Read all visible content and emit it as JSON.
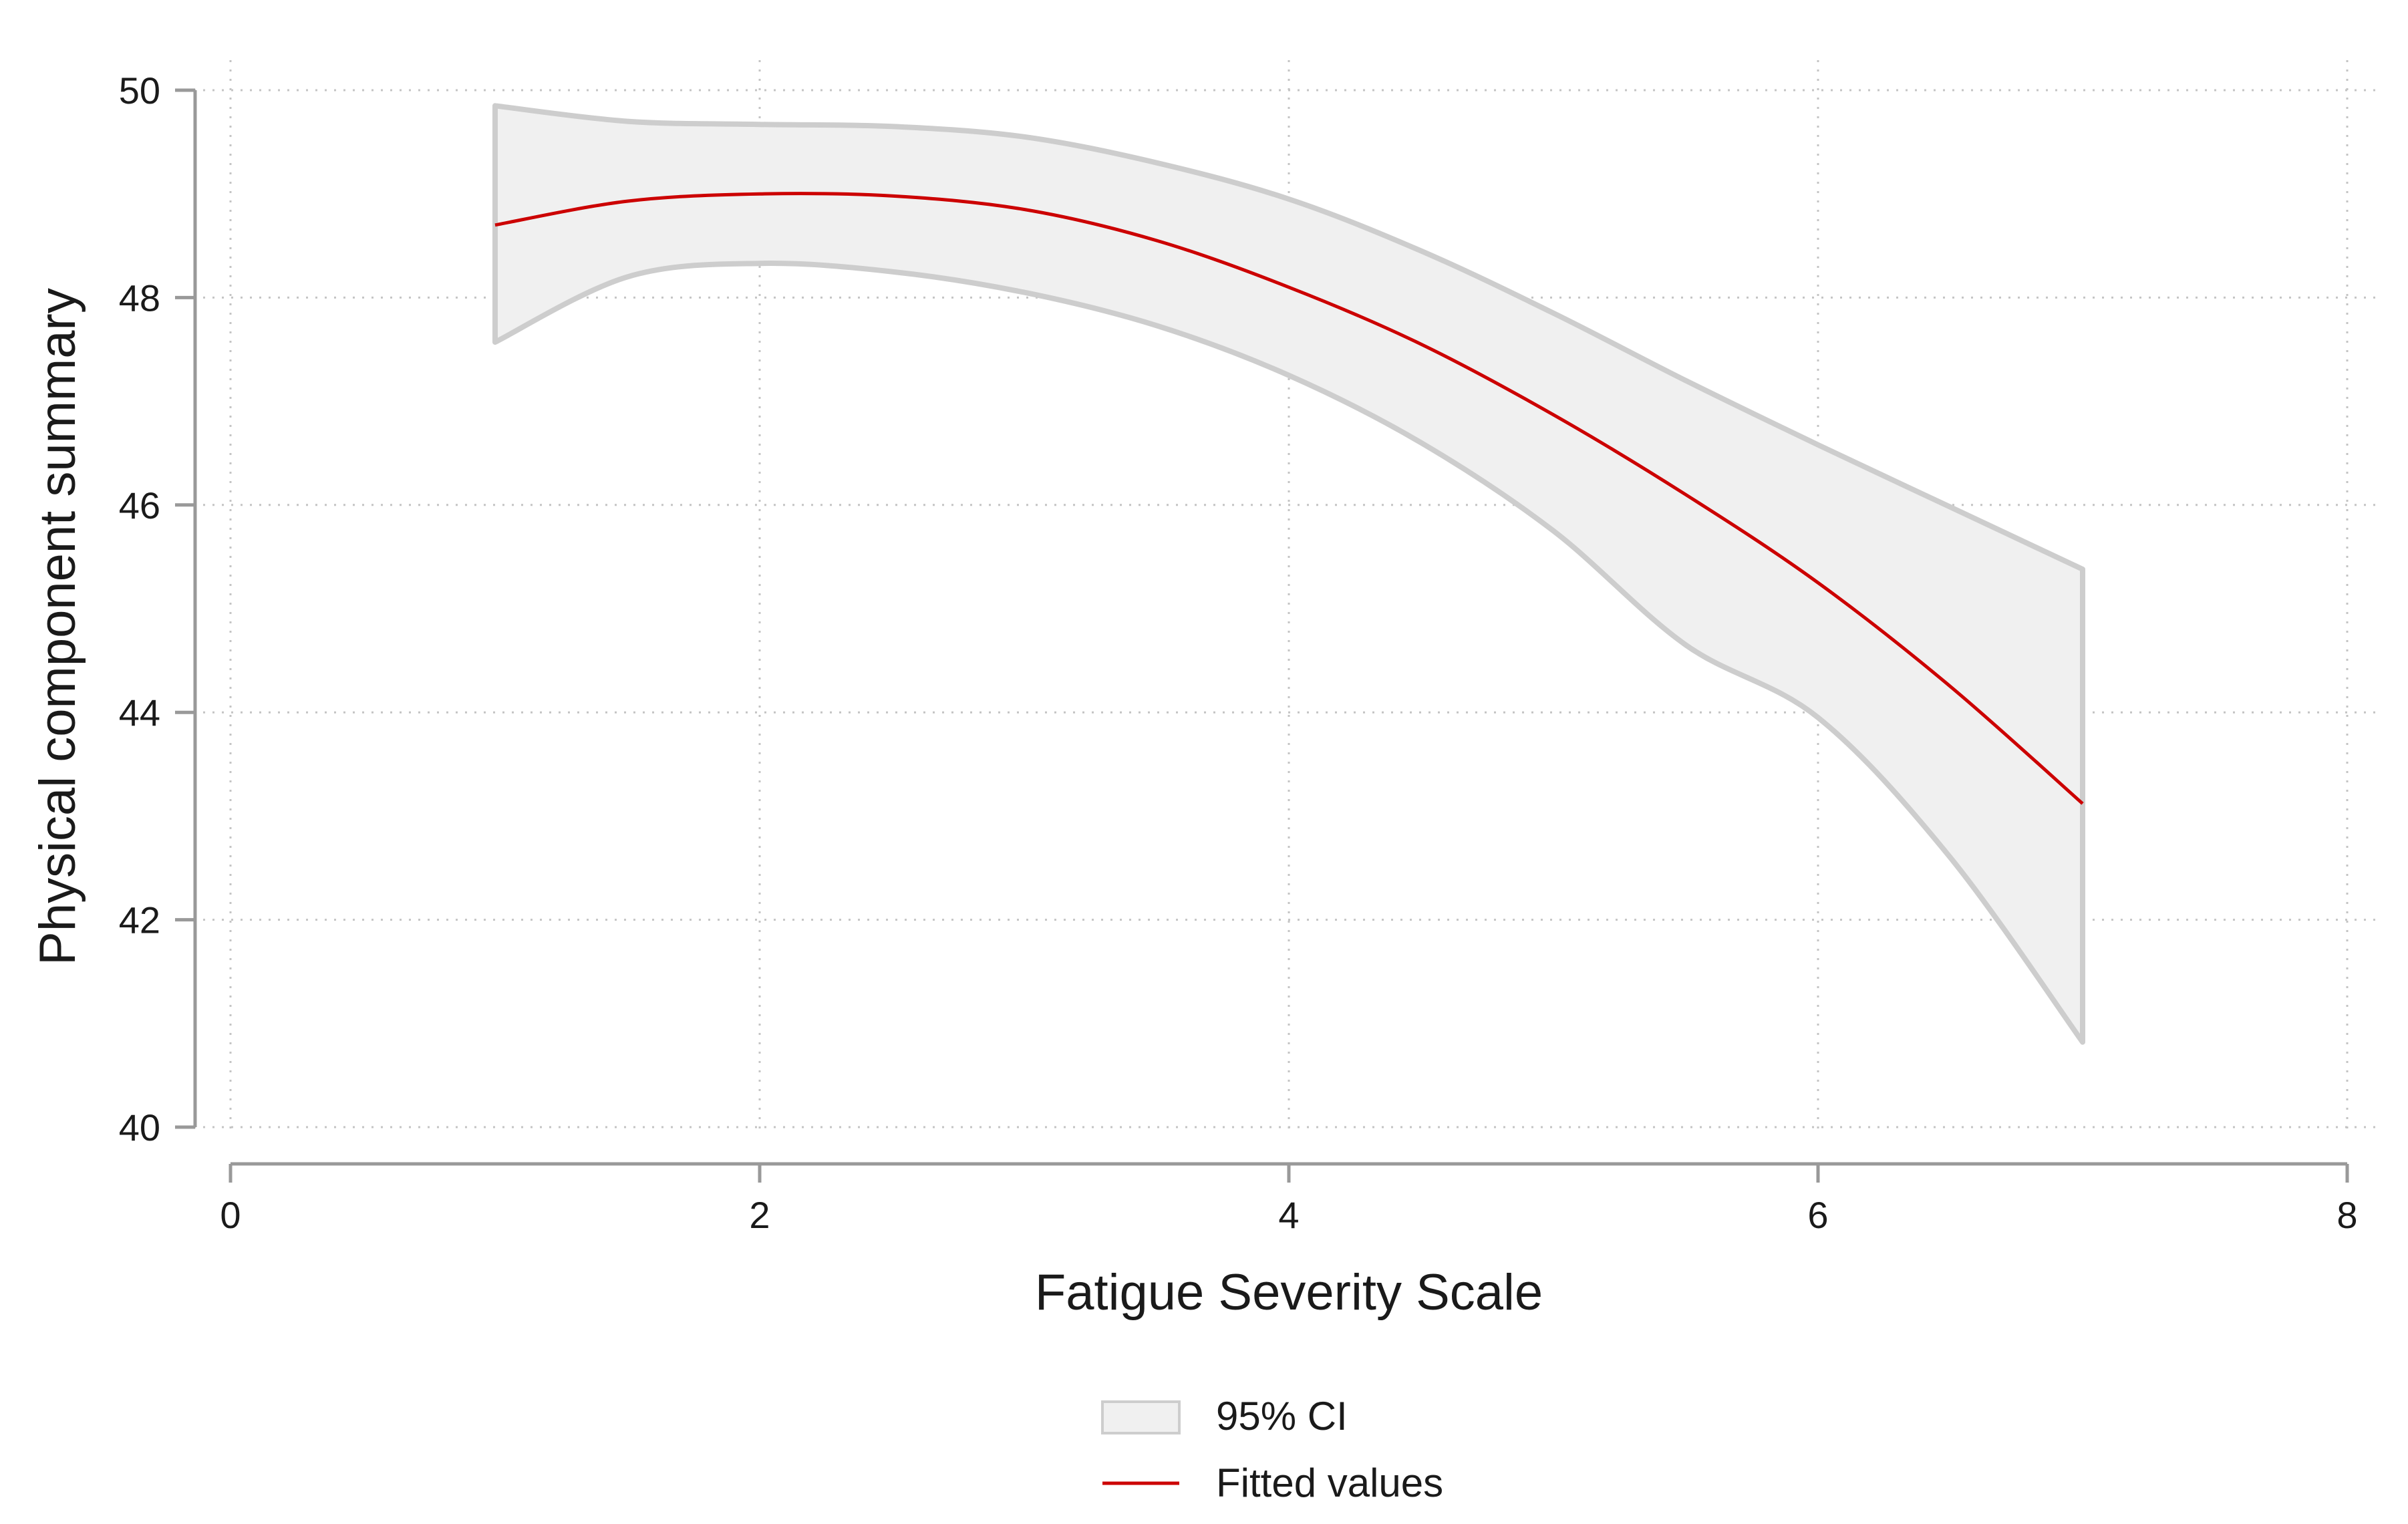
{
  "chart_data": {
    "type": "line",
    "title": "",
    "xlabel": "Fatigue Severity Scale",
    "ylabel": "Physical component summary",
    "xlim": [
      0,
      8
    ],
    "ylim": [
      40,
      50
    ],
    "x_ticks": [
      0,
      2,
      4,
      6,
      8
    ],
    "y_ticks": [
      40,
      42,
      44,
      46,
      48,
      50
    ],
    "grid": true,
    "legend_position": "bottom",
    "x": [
      1,
      1.5,
      2,
      2.5,
      3,
      3.5,
      4,
      4.5,
      5,
      5.5,
      6,
      6.5,
      7
    ],
    "series": [
      {
        "name": "95% CI",
        "kind": "band",
        "lower": [
          47.57,
          48.2,
          48.33,
          48.25,
          48.05,
          47.73,
          47.25,
          46.6,
          45.75,
          44.65,
          43.95,
          42.6,
          40.82
        ],
        "upper": [
          49.85,
          49.7,
          49.67,
          49.65,
          49.55,
          49.3,
          48.95,
          48.45,
          47.85,
          47.2,
          46.58,
          45.98,
          45.38
        ]
      },
      {
        "name": "Fitted values",
        "kind": "line",
        "values": [
          48.7,
          48.93,
          49.0,
          48.98,
          48.85,
          48.55,
          48.1,
          47.55,
          46.87,
          46.1,
          45.25,
          44.25,
          43.12
        ]
      }
    ],
    "colors": {
      "ci_fill": "#f0f0f0",
      "ci_stroke": "#cdcdcd",
      "fitted": "#cc0000",
      "axis": "#999999",
      "grid": "#c4c4c4"
    }
  }
}
